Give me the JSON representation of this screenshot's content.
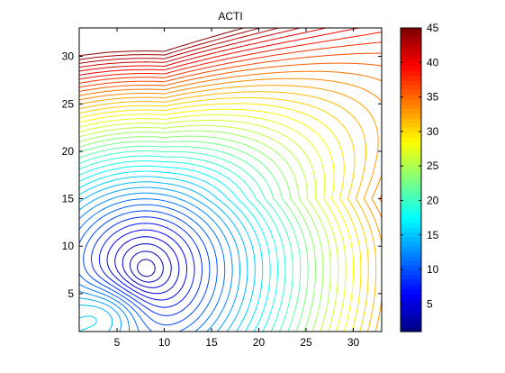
{
  "chart_data": {
    "type": "contour",
    "title": "ACTI",
    "xlabel": "",
    "ylabel": "",
    "xlim": [
      1,
      33
    ],
    "ylim": [
      1,
      33
    ],
    "xticks": [
      5,
      10,
      15,
      20,
      25,
      30
    ],
    "yticks": [
      5,
      10,
      15,
      20,
      25,
      30
    ],
    "grid": false,
    "colormap": "jet",
    "colorbar": {
      "position": "right",
      "range": [
        1,
        45
      ],
      "ticks": [
        5,
        10,
        15,
        20,
        25,
        30,
        35,
        40,
        45
      ]
    },
    "contour_levels": [
      1.5,
      2.5,
      3.5,
      4.5,
      5.5,
      6.5,
      7.5,
      8.5,
      9.5,
      10.5,
      11.5,
      12.5,
      13.5,
      14.5,
      15.5,
      16.5,
      17.5,
      18.5,
      19.5,
      20.5,
      21.5,
      22.5,
      23.5,
      24.5,
      25.5,
      26.5,
      27.5,
      28.5,
      29.5,
      30.5,
      31.5,
      32.5,
      33.5,
      34.5,
      35.5,
      36.5,
      37.5,
      38.5,
      39.5,
      40.5,
      41.5,
      42.5,
      43.5,
      44.5
    ],
    "field": {
      "description_of_shape": "minimum near (x=8, y=7.5); values increase upward to ~45 at y=33 and rightward to ~15 at lower right",
      "min_location": [
        8,
        7.5
      ],
      "min_value": 1,
      "max_value": 45
    }
  }
}
